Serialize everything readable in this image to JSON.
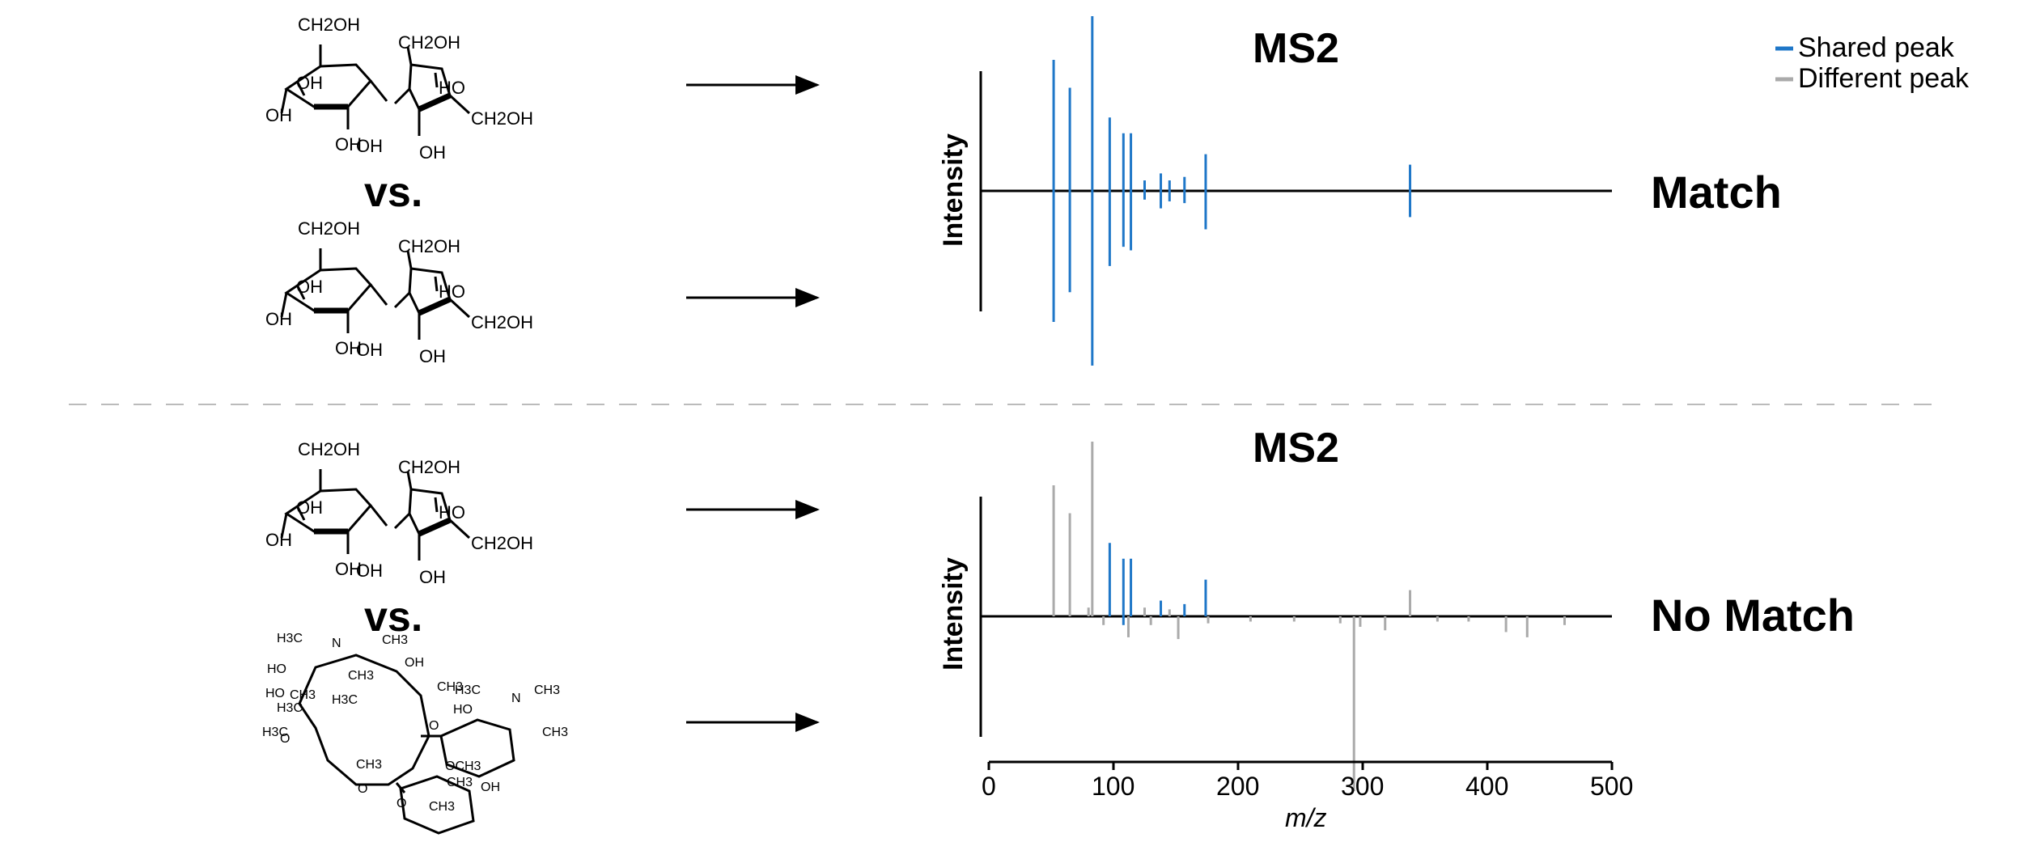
{
  "colors": {
    "shared": "#1f77c8",
    "different": "#aaaaaa",
    "axis": "#000000",
    "divider": "#bbbbbb"
  },
  "legend": {
    "shared_label": "Shared peak",
    "different_label": "Different peak"
  },
  "molecules": {
    "vs_label": "vs.",
    "sucrose_labels": [
      "CH2OH",
      "CH2OH",
      "OH",
      "HO",
      "OH",
      "OH",
      "CH2OH",
      "OH",
      "OH"
    ],
    "macrolide_labels": [
      "H3C",
      "N",
      "CH3",
      "CH3",
      "HO",
      "OH",
      "HO",
      "CH3",
      "H3C",
      "CH3",
      "H3C",
      "H3C",
      "N",
      "CH3",
      "HO",
      "CH3",
      "H3C",
      "O",
      "O",
      "CH3",
      "OCH3",
      "CH3",
      "OH",
      "CH3",
      "O",
      "O"
    ]
  },
  "chart_data": [
    {
      "type": "bar",
      "subtype": "mirror-spectrum",
      "title": "MS2",
      "ylabel": "Intensity",
      "result": "Match",
      "xlim": [
        0,
        500
      ],
      "ylim": [
        -1,
        1
      ],
      "top": {
        "shared": [
          [
            52,
            0.75
          ],
          [
            65,
            0.59
          ],
          [
            83,
            1.0
          ],
          [
            97,
            0.42
          ],
          [
            108,
            0.33
          ],
          [
            114,
            0.33
          ],
          [
            125,
            0.06
          ],
          [
            138,
            0.1
          ],
          [
            145,
            0.06
          ],
          [
            157,
            0.08
          ],
          [
            174,
            0.21
          ],
          [
            338,
            0.15
          ]
        ],
        "different": []
      },
      "bottom": {
        "shared": [
          [
            52,
            0.75
          ],
          [
            65,
            0.58
          ],
          [
            83,
            1.0
          ],
          [
            97,
            0.43
          ],
          [
            108,
            0.32
          ],
          [
            114,
            0.34
          ],
          [
            125,
            0.05
          ],
          [
            138,
            0.1
          ],
          [
            145,
            0.06
          ],
          [
            157,
            0.07
          ],
          [
            174,
            0.22
          ],
          [
            338,
            0.15
          ]
        ],
        "different": []
      }
    },
    {
      "type": "bar",
      "subtype": "mirror-spectrum",
      "title": "MS2",
      "ylabel": "Intensity",
      "result": "No Match",
      "xlabel": "m/z",
      "xticks": [
        0,
        100,
        200,
        300,
        400,
        500
      ],
      "xlim": [
        0,
        500
      ],
      "ylim": [
        -1,
        1
      ],
      "top": {
        "shared": [
          [
            97,
            0.42
          ],
          [
            108,
            0.33
          ],
          [
            114,
            0.33
          ],
          [
            138,
            0.09
          ],
          [
            157,
            0.07
          ],
          [
            174,
            0.21
          ]
        ],
        "different": [
          [
            52,
            0.75
          ],
          [
            65,
            0.59
          ],
          [
            83,
            1.0
          ],
          [
            80,
            0.05
          ],
          [
            125,
            0.05
          ],
          [
            145,
            0.04
          ],
          [
            338,
            0.15
          ]
        ]
      },
      "bottom": {
        "shared": [
          [
            108,
            0.05
          ]
        ],
        "different": [
          [
            92,
            0.05
          ],
          [
            112,
            0.12
          ],
          [
            130,
            0.05
          ],
          [
            152,
            0.13
          ],
          [
            176,
            0.04
          ],
          [
            210,
            0.03
          ],
          [
            245,
            0.03
          ],
          [
            282,
            0.04
          ],
          [
            293,
            1.0
          ],
          [
            298,
            0.06
          ],
          [
            318,
            0.08
          ],
          [
            360,
            0.03
          ],
          [
            385,
            0.03
          ],
          [
            415,
            0.09
          ],
          [
            432,
            0.12
          ],
          [
            462,
            0.05
          ]
        ]
      }
    }
  ]
}
